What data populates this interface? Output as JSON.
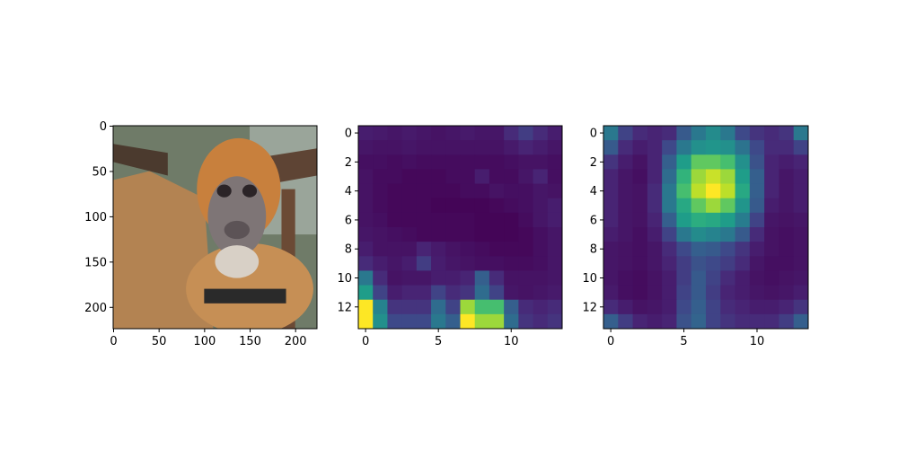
{
  "chart_data": [
    {
      "type": "image",
      "content": "photo of a spider monkey",
      "xticks": [
        0,
        50,
        100,
        150,
        200
      ],
      "yticks": [
        0,
        50,
        100,
        150,
        200
      ],
      "xlim": [
        -0.5,
        223.5
      ],
      "ylim": [
        223.5,
        -0.5
      ]
    },
    {
      "type": "heatmap",
      "colormap": "viridis",
      "grid_size": [
        14,
        14
      ],
      "xticks": [
        0,
        5,
        10
      ],
      "yticks": [
        0,
        2,
        4,
        6,
        8,
        10,
        12
      ],
      "values": [
        [
          0.08,
          0.07,
          0.06,
          0.07,
          0.06,
          0.05,
          0.06,
          0.07,
          0.06,
          0.06,
          0.12,
          0.18,
          0.12,
          0.08
        ],
        [
          0.06,
          0.05,
          0.05,
          0.06,
          0.05,
          0.05,
          0.05,
          0.05,
          0.05,
          0.05,
          0.07,
          0.1,
          0.08,
          0.06
        ],
        [
          0.04,
          0.04,
          0.03,
          0.04,
          0.03,
          0.03,
          0.03,
          0.03,
          0.03,
          0.03,
          0.04,
          0.05,
          0.05,
          0.04
        ],
        [
          0.05,
          0.03,
          0.03,
          0.02,
          0.02,
          0.02,
          0.03,
          0.03,
          0.08,
          0.03,
          0.03,
          0.06,
          0.1,
          0.04
        ],
        [
          0.05,
          0.03,
          0.02,
          0.02,
          0.02,
          0.02,
          0.02,
          0.03,
          0.03,
          0.05,
          0.04,
          0.04,
          0.06,
          0.05
        ],
        [
          0.05,
          0.03,
          0.02,
          0.02,
          0.02,
          0.01,
          0.01,
          0.01,
          0.01,
          0.02,
          0.03,
          0.04,
          0.06,
          0.08
        ],
        [
          0.05,
          0.04,
          0.02,
          0.02,
          0.02,
          0.02,
          0.02,
          0.02,
          0.01,
          0.01,
          0.01,
          0.03,
          0.06,
          0.08
        ],
        [
          0.06,
          0.05,
          0.04,
          0.03,
          0.02,
          0.02,
          0.02,
          0.02,
          0.01,
          0.01,
          0.01,
          0.02,
          0.04,
          0.06
        ],
        [
          0.08,
          0.05,
          0.05,
          0.05,
          0.1,
          0.07,
          0.05,
          0.04,
          0.03,
          0.02,
          0.02,
          0.02,
          0.04,
          0.06
        ],
        [
          0.12,
          0.08,
          0.06,
          0.08,
          0.18,
          0.08,
          0.06,
          0.05,
          0.04,
          0.04,
          0.03,
          0.03,
          0.04,
          0.06
        ],
        [
          0.4,
          0.12,
          0.05,
          0.06,
          0.06,
          0.08,
          0.08,
          0.1,
          0.3,
          0.12,
          0.05,
          0.05,
          0.05,
          0.06
        ],
        [
          0.55,
          0.2,
          0.08,
          0.1,
          0.1,
          0.2,
          0.12,
          0.15,
          0.35,
          0.2,
          0.06,
          0.05,
          0.06,
          0.07
        ],
        [
          1.0,
          0.45,
          0.15,
          0.15,
          0.15,
          0.35,
          0.2,
          0.85,
          0.7,
          0.7,
          0.3,
          0.12,
          0.1,
          0.12
        ],
        [
          1.0,
          0.5,
          0.22,
          0.22,
          0.22,
          0.4,
          0.3,
          1.0,
          0.85,
          0.85,
          0.35,
          0.15,
          0.12,
          0.15
        ]
      ]
    },
    {
      "type": "heatmap",
      "colormap": "viridis",
      "grid_size": [
        14,
        14
      ],
      "xticks": [
        0,
        5,
        10
      ],
      "yticks": [
        0,
        2,
        4,
        6,
        8,
        10,
        12
      ],
      "values": [
        [
          0.4,
          0.2,
          0.12,
          0.1,
          0.12,
          0.28,
          0.4,
          0.48,
          0.4,
          0.22,
          0.15,
          0.12,
          0.15,
          0.4
        ],
        [
          0.28,
          0.12,
          0.08,
          0.1,
          0.22,
          0.4,
          0.5,
          0.52,
          0.5,
          0.38,
          0.22,
          0.12,
          0.12,
          0.2
        ],
        [
          0.15,
          0.08,
          0.05,
          0.1,
          0.3,
          0.55,
          0.75,
          0.75,
          0.7,
          0.5,
          0.25,
          0.1,
          0.08,
          0.1
        ],
        [
          0.1,
          0.06,
          0.04,
          0.1,
          0.35,
          0.65,
          0.85,
          0.92,
          0.85,
          0.55,
          0.3,
          0.1,
          0.06,
          0.08
        ],
        [
          0.1,
          0.06,
          0.05,
          0.12,
          0.4,
          0.7,
          0.9,
          1.0,
          0.9,
          0.6,
          0.3,
          0.1,
          0.06,
          0.08
        ],
        [
          0.1,
          0.06,
          0.05,
          0.12,
          0.4,
          0.6,
          0.75,
          0.85,
          0.75,
          0.52,
          0.28,
          0.08,
          0.06,
          0.08
        ],
        [
          0.1,
          0.06,
          0.05,
          0.1,
          0.3,
          0.55,
          0.62,
          0.6,
          0.55,
          0.42,
          0.2,
          0.06,
          0.05,
          0.06
        ],
        [
          0.08,
          0.06,
          0.04,
          0.08,
          0.2,
          0.4,
          0.48,
          0.45,
          0.4,
          0.28,
          0.12,
          0.05,
          0.04,
          0.05
        ],
        [
          0.06,
          0.05,
          0.04,
          0.06,
          0.12,
          0.22,
          0.3,
          0.28,
          0.22,
          0.15,
          0.08,
          0.05,
          0.04,
          0.05
        ],
        [
          0.06,
          0.05,
          0.04,
          0.06,
          0.1,
          0.18,
          0.25,
          0.22,
          0.18,
          0.12,
          0.06,
          0.04,
          0.04,
          0.05
        ],
        [
          0.06,
          0.04,
          0.03,
          0.05,
          0.08,
          0.18,
          0.28,
          0.2,
          0.12,
          0.08,
          0.05,
          0.04,
          0.05,
          0.06
        ],
        [
          0.07,
          0.04,
          0.03,
          0.05,
          0.08,
          0.2,
          0.28,
          0.18,
          0.1,
          0.08,
          0.06,
          0.05,
          0.06,
          0.08
        ],
        [
          0.12,
          0.08,
          0.05,
          0.06,
          0.08,
          0.22,
          0.3,
          0.2,
          0.12,
          0.1,
          0.08,
          0.08,
          0.1,
          0.15
        ],
        [
          0.3,
          0.18,
          0.1,
          0.08,
          0.1,
          0.25,
          0.32,
          0.2,
          0.15,
          0.12,
          0.12,
          0.12,
          0.18,
          0.3
        ]
      ]
    }
  ]
}
